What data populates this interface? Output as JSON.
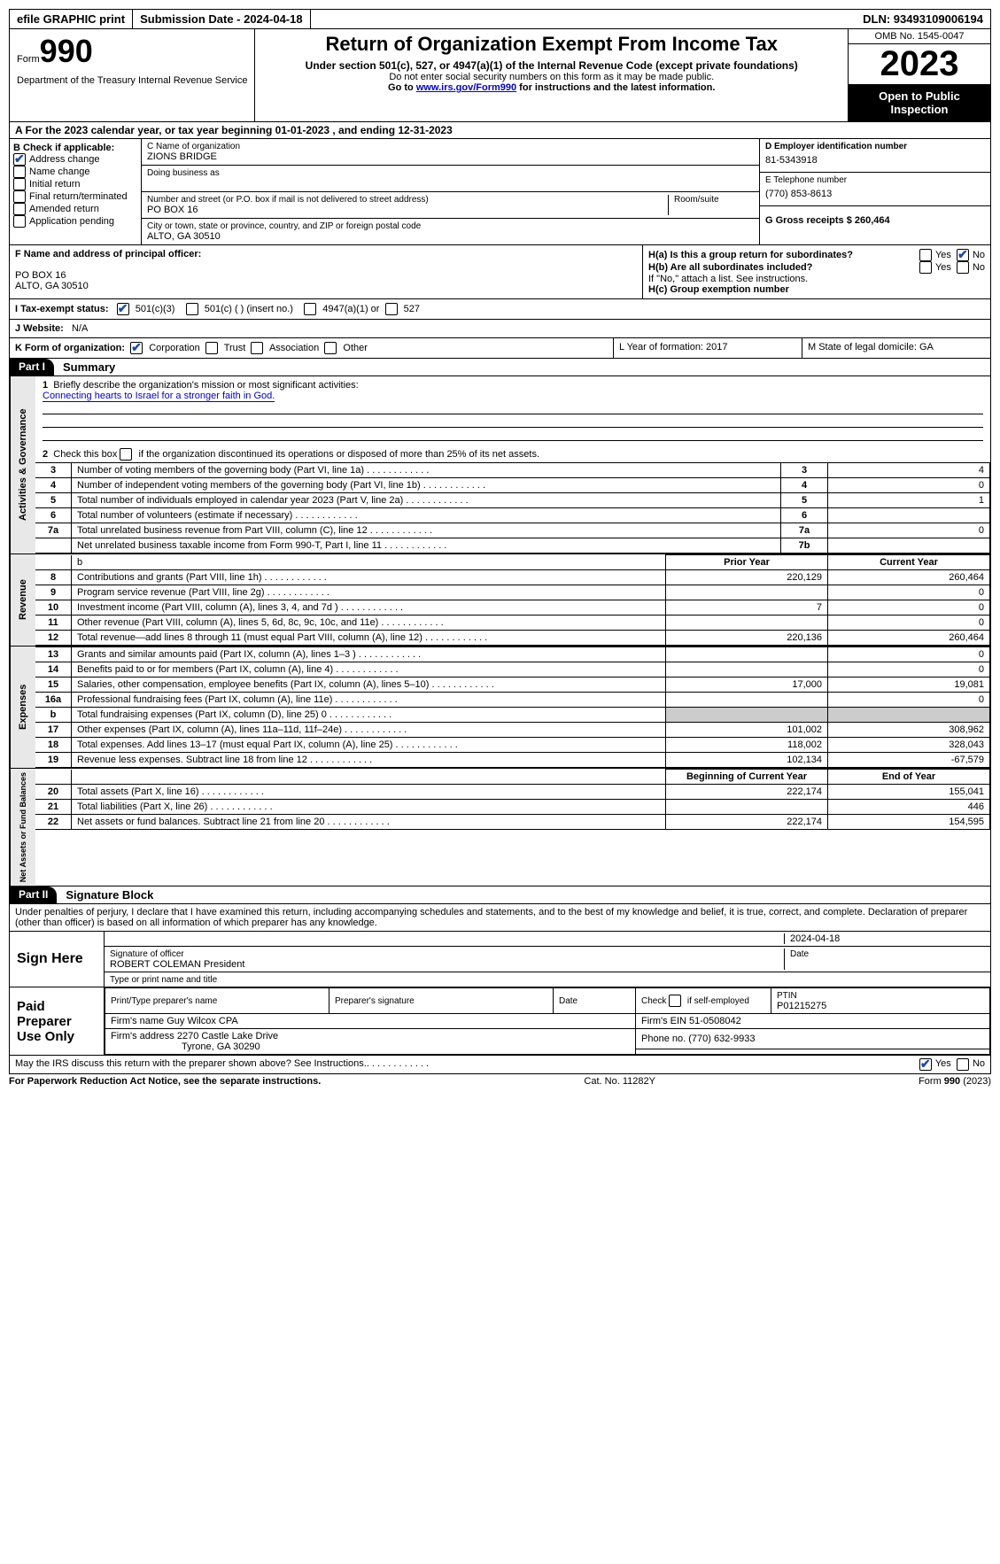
{
  "topbar": {
    "efile": "efile GRAPHIC print",
    "submission": "Submission Date - 2024-04-18",
    "dln": "DLN: 93493109006194"
  },
  "header": {
    "form": "Form",
    "num": "990",
    "title": "Return of Organization Exempt From Income Tax",
    "sub1": "Under section 501(c), 527, or 4947(a)(1) of the Internal Revenue Code (except private foundations)",
    "sub2": "Do not enter social security numbers on this form as it may be made public.",
    "sub3a": "Go to ",
    "sub3link": "www.irs.gov/Form990",
    "sub3b": " for instructions and the latest information.",
    "omb": "OMB No. 1545-0047",
    "year": "2023",
    "open": "Open to Public Inspection",
    "dept": "Department of the Treasury Internal Revenue Service"
  },
  "rowA": "A For the 2023 calendar year, or tax year beginning 01-01-2023    , and ending 12-31-2023",
  "boxB": {
    "label": "B Check if applicable:",
    "addr": "Address change",
    "name": "Name change",
    "init": "Initial return",
    "final": "Final return/terminated",
    "amend": "Amended return",
    "app": "Application pending"
  },
  "boxC": {
    "nameLabel": "C Name of organization",
    "name": "ZIONS BRIDGE",
    "dba": "Doing business as",
    "addrLabel": "Number and street (or P.O. box if mail is not delivered to street address)",
    "room": "Room/suite",
    "addr": "PO BOX 16",
    "cityLabel": "City or town, state or province, country, and ZIP or foreign postal code",
    "city": "ALTO, GA  30510"
  },
  "boxD": {
    "einLabel": "D Employer identification number",
    "ein": "81-5343918",
    "telLabel": "E Telephone number",
    "tel": "(770) 853-8613",
    "grossLabel": "G Gross receipts $ 260,464"
  },
  "boxF": {
    "label": "F  Name and address of principal officer:",
    "addr1": "PO BOX 16",
    "addr2": "ALTO, GA  30510"
  },
  "boxH": {
    "ha": "H(a)  Is this a group return for subordinates?",
    "hb": "H(b)  Are all subordinates included?",
    "hbno": "If \"No,\" attach a list. See instructions.",
    "hc": "H(c)  Group exemption number",
    "yes": "Yes",
    "no": "No"
  },
  "boxI": {
    "label": "I  Tax-exempt status:",
    "c3": "501(c)(3)",
    "c": "501(c) (  ) (insert no.)",
    "a1": "4947(a)(1) or",
    "527": "527"
  },
  "boxJ": {
    "label": "J  Website:",
    "val": "N/A"
  },
  "boxK": {
    "label": "K Form of organization:",
    "corp": "Corporation",
    "trust": "Trust",
    "assoc": "Association",
    "other": "Other"
  },
  "boxL": "L Year of formation: 2017",
  "boxM": "M State of legal domicile: GA",
  "part1": {
    "hdr": "Part I",
    "title": "Summary",
    "l1a": "Briefly describe the organization's mission or most significant activities:",
    "l1b": "Connecting hearts to Israel for a stronger faith in God.",
    "l2": "Check this box       if the organization discontinued its operations or disposed of more than 25% of its net assets.",
    "sections": {
      "ag": "Activities & Governance",
      "rev": "Revenue",
      "exp": "Expenses",
      "na": "Net Assets or Fund Balances"
    },
    "lines_gov": [
      {
        "n": "3",
        "t": "Number of voting members of the governing body (Part VI, line 1a)",
        "box": "3",
        "v": "4"
      },
      {
        "n": "4",
        "t": "Number of independent voting members of the governing body (Part VI, line 1b)",
        "box": "4",
        "v": "0"
      },
      {
        "n": "5",
        "t": "Total number of individuals employed in calendar year 2023 (Part V, line 2a)",
        "box": "5",
        "v": "1"
      },
      {
        "n": "6",
        "t": "Total number of volunteers (estimate if necessary)",
        "box": "6",
        "v": ""
      },
      {
        "n": "7a",
        "t": "Total unrelated business revenue from Part VIII, column (C), line 12",
        "box": "7a",
        "v": "0"
      },
      {
        "n": "",
        "t": "Net unrelated business taxable income from Form 990-T, Part I, line 11",
        "box": "7b",
        "v": ""
      }
    ],
    "hdr_py": "Prior Year",
    "hdr_cy": "Current Year",
    "lines_rev": [
      {
        "n": "8",
        "t": "Contributions and grants (Part VIII, line 1h)",
        "py": "220,129",
        "cy": "260,464"
      },
      {
        "n": "9",
        "t": "Program service revenue (Part VIII, line 2g)",
        "py": "",
        "cy": "0"
      },
      {
        "n": "10",
        "t": "Investment income (Part VIII, column (A), lines 3, 4, and 7d )",
        "py": "7",
        "cy": "0"
      },
      {
        "n": "11",
        "t": "Other revenue (Part VIII, column (A), lines 5, 6d, 8c, 9c, 10c, and 11e)",
        "py": "",
        "cy": "0"
      },
      {
        "n": "12",
        "t": "Total revenue—add lines 8 through 11 (must equal Part VIII, column (A), line 12)",
        "py": "220,136",
        "cy": "260,464"
      }
    ],
    "lines_exp": [
      {
        "n": "13",
        "t": "Grants and similar amounts paid (Part IX, column (A), lines 1–3 )",
        "py": "",
        "cy": "0"
      },
      {
        "n": "14",
        "t": "Benefits paid to or for members (Part IX, column (A), line 4)",
        "py": "",
        "cy": "0"
      },
      {
        "n": "15",
        "t": "Salaries, other compensation, employee benefits (Part IX, column (A), lines 5–10)",
        "py": "17,000",
        "cy": "19,081"
      },
      {
        "n": "16a",
        "t": "Professional fundraising fees (Part IX, column (A), line 11e)",
        "py": "",
        "cy": "0"
      },
      {
        "n": "b",
        "t": "Total fundraising expenses (Part IX, column (D), line 25) 0",
        "py": "GRAY",
        "cy": "GRAY"
      },
      {
        "n": "17",
        "t": "Other expenses (Part IX, column (A), lines 11a–11d, 11f–24e)",
        "py": "101,002",
        "cy": "308,962"
      },
      {
        "n": "18",
        "t": "Total expenses. Add lines 13–17 (must equal Part IX, column (A), line 25)",
        "py": "118,002",
        "cy": "328,043"
      },
      {
        "n": "19",
        "t": "Revenue less expenses. Subtract line 18 from line 12",
        "py": "102,134",
        "cy": "-67,579"
      }
    ],
    "hdr_bcy": "Beginning of Current Year",
    "hdr_eoy": "End of Year",
    "lines_na": [
      {
        "n": "20",
        "t": "Total assets (Part X, line 16)",
        "py": "222,174",
        "cy": "155,041"
      },
      {
        "n": "21",
        "t": "Total liabilities (Part X, line 26)",
        "py": "",
        "cy": "446"
      },
      {
        "n": "22",
        "t": "Net assets or fund balances. Subtract line 21 from line 20",
        "py": "222,174",
        "cy": "154,595"
      }
    ]
  },
  "part2": {
    "hdr": "Part II",
    "title": "Signature Block",
    "decl": "Under penalties of perjury, I declare that I have examined this return, including accompanying schedules and statements, and to the best of my knowledge and belief, it is true, correct, and complete. Declaration of preparer (other than officer) is based on all information of which preparer has any knowledge.",
    "signHere": "Sign Here",
    "sigDate": "2024-04-18",
    "sigOff": "Signature of officer",
    "sigName": "ROBERT COLEMAN  President",
    "typeName": "Type or print name and title",
    "date": "Date",
    "paid": "Paid Preparer Use Only",
    "prepName": "Print/Type preparer's name",
    "prepSig": "Preparer's signature",
    "chkSelf": "Check        if self-employed",
    "ptin": "PTIN",
    "ptinV": "P01215275",
    "firmName": "Firm's name      Guy Wilcox CPA",
    "firmEin": "Firm's EIN  51-0508042",
    "firmAddr1": "Firm's address 2270 Castle Lake Drive",
    "firmAddr2": "Tyrone, GA  30290",
    "phone": "Phone no. (770) 632-9933",
    "discuss": "May the IRS discuss this return with the preparer shown above? See Instructions.",
    "yes": "Yes",
    "no": "No"
  },
  "footer": {
    "pra": "For Paperwork Reduction Act Notice, see the separate instructions.",
    "cat": "Cat. No. 11282Y",
    "form": "Form 990 (2023)"
  }
}
